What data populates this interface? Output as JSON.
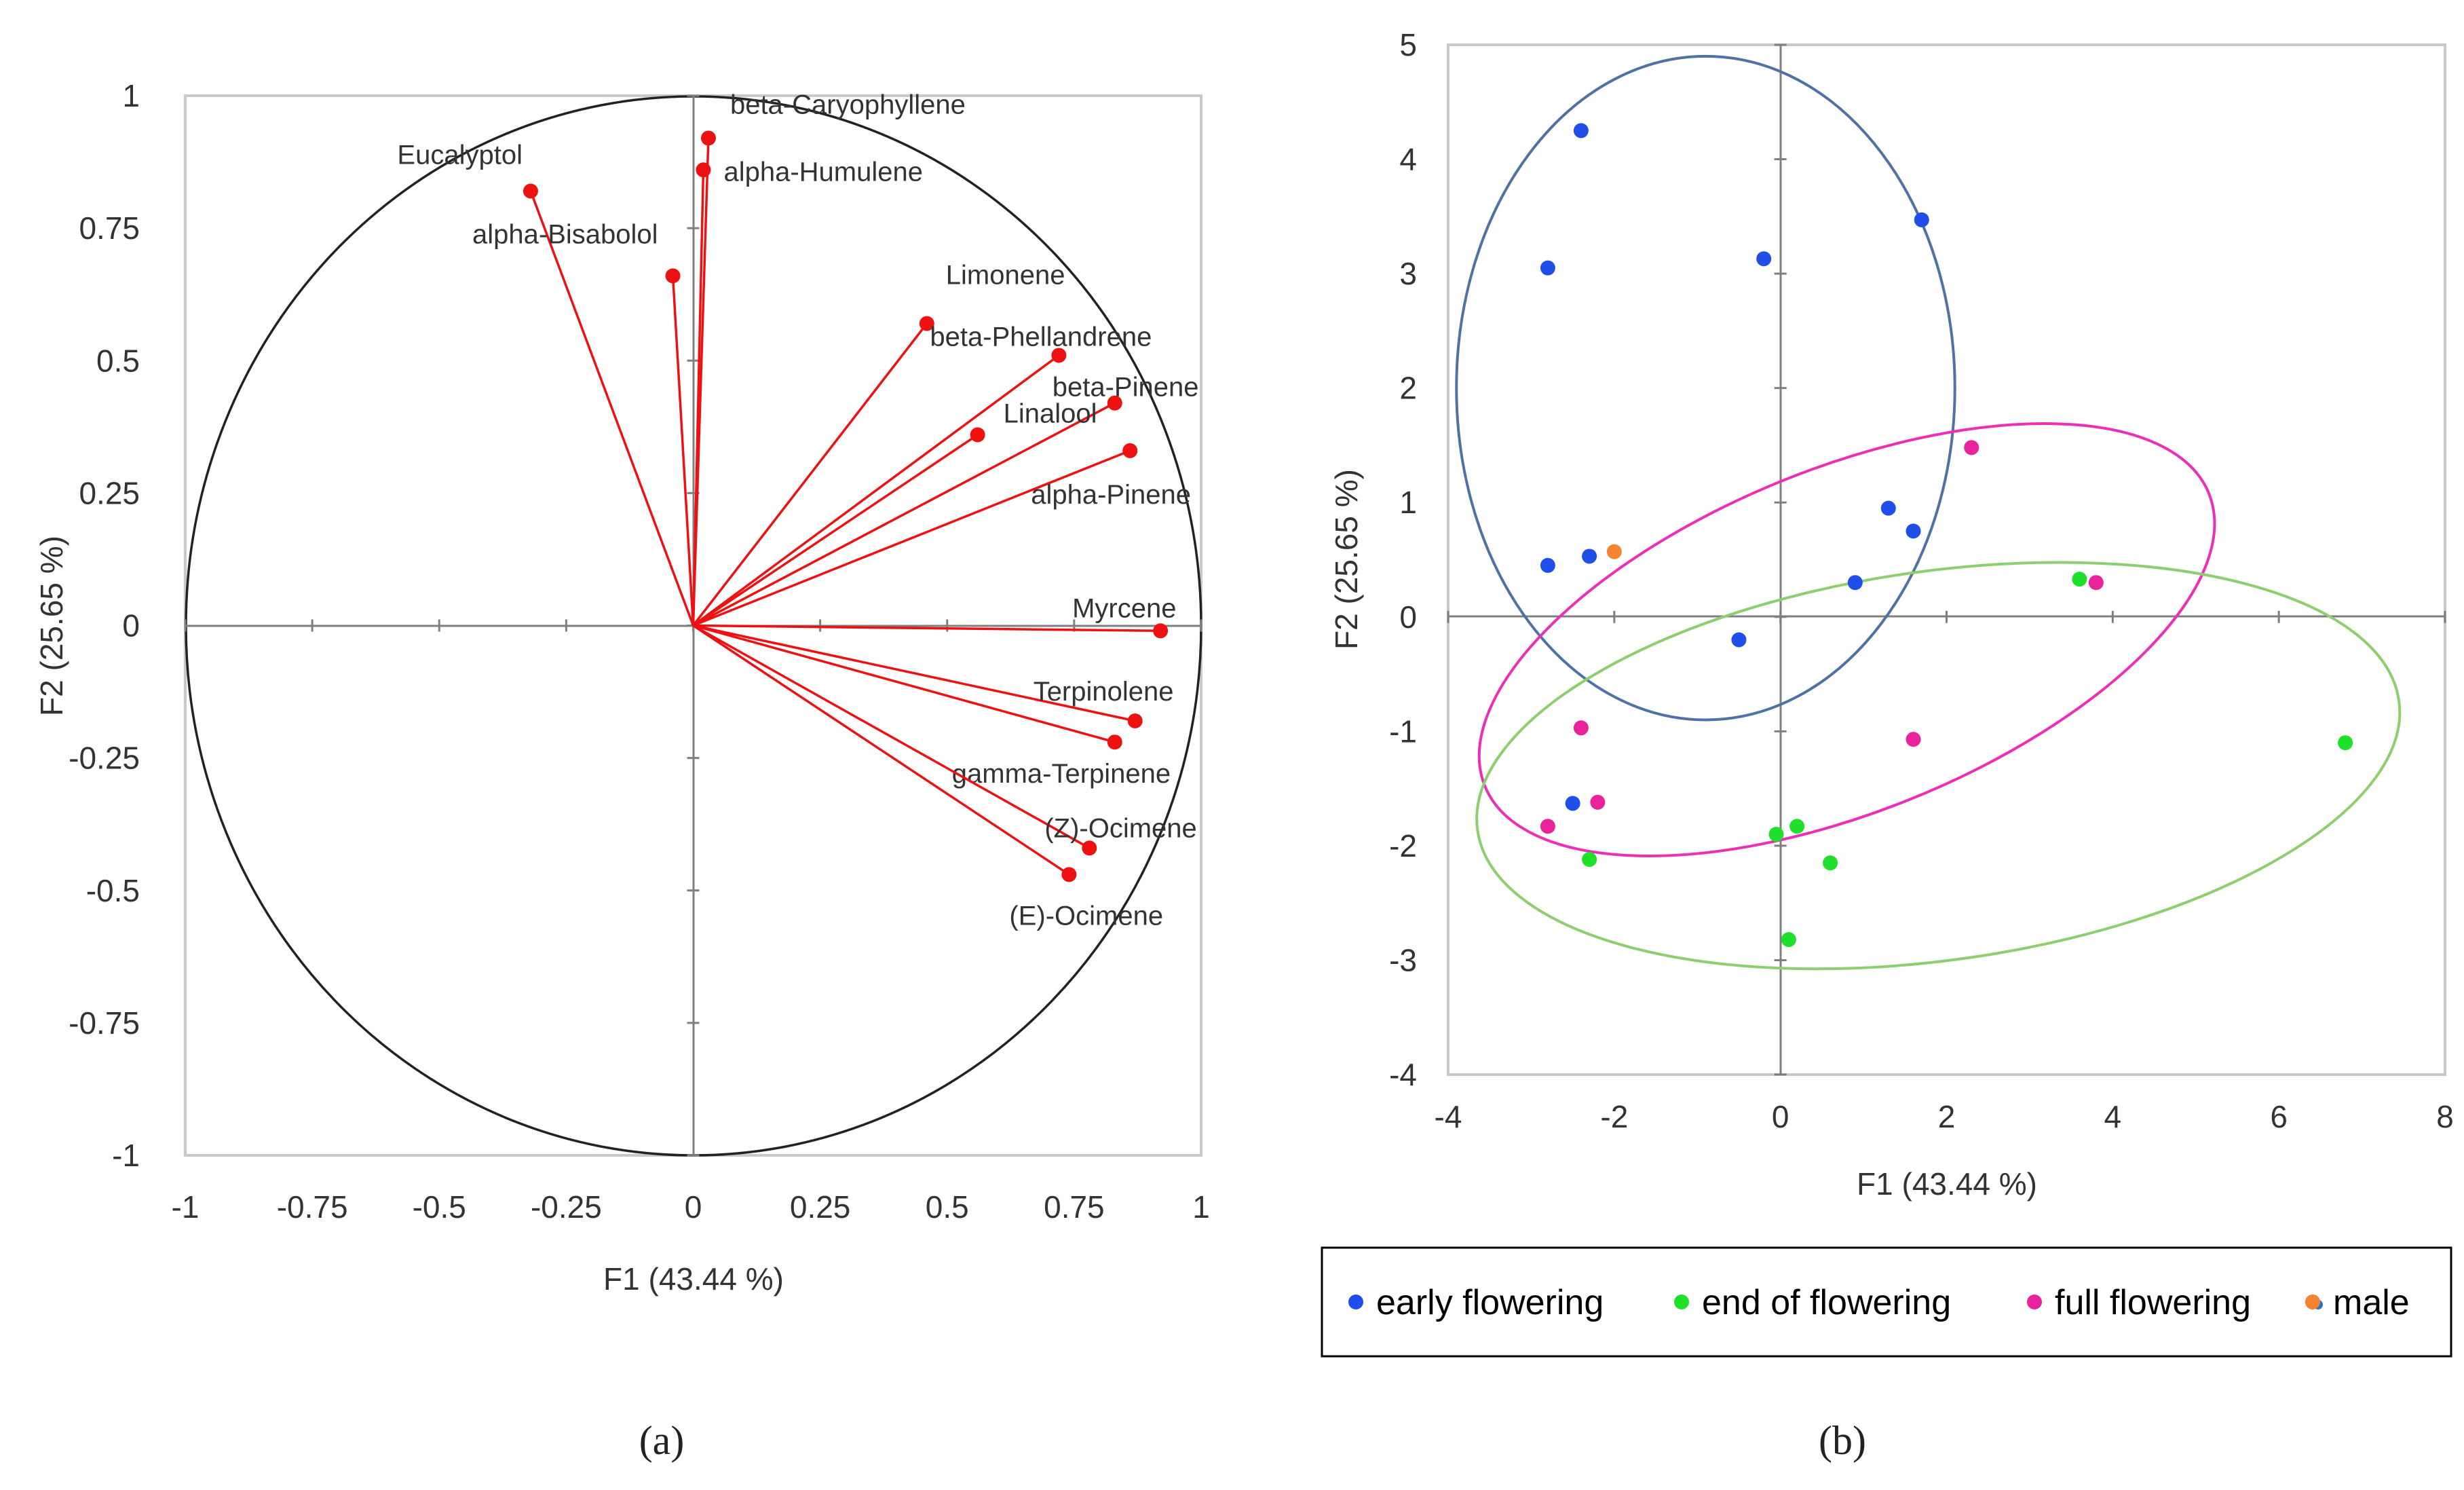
{
  "colors": {
    "vector": "#ee1111",
    "axis": "#7f7f7f",
    "grid_box": "#c8c8c8",
    "circle": "#222222",
    "text": "#333333"
  },
  "chart_data": [
    {
      "type": "scatter",
      "subtype": "pca-correlation-circle",
      "panel_label": "(a)",
      "xlabel": "F1 (43.44 %)",
      "ylabel": "F2 (25.65 %)",
      "xlim": [
        -1,
        1
      ],
      "ylim": [
        -1,
        1
      ],
      "x_ticks": [
        -1,
        -0.75,
        -0.5,
        -0.25,
        0,
        0.25,
        0.5,
        0.75,
        1
      ],
      "y_ticks": [
        -1,
        -0.75,
        -0.5,
        -0.25,
        0,
        0.25,
        0.5,
        0.75,
        1
      ],
      "x_tick_labels": [
        "-1",
        "-0.75",
        "-0.5",
        "-0.25",
        "0",
        "0.25",
        "0.5",
        "0.75",
        "1"
      ],
      "y_tick_labels": [
        "-1",
        "-0.75",
        "-0.5",
        "-0.25",
        "0",
        "0.25",
        "0.5",
        "0.75",
        "1"
      ],
      "variables": [
        {
          "name": "beta-Caryophyllene",
          "x": 0.03,
          "y": 0.92
        },
        {
          "name": "alpha-Humulene",
          "x": 0.02,
          "y": 0.86
        },
        {
          "name": "Eucalyptol",
          "x": -0.32,
          "y": 0.82
        },
        {
          "name": "alpha-Bisabolol",
          "x": -0.04,
          "y": 0.66
        },
        {
          "name": "Limonene",
          "x": 0.46,
          "y": 0.57
        },
        {
          "name": "beta-Phellandrene",
          "x": 0.72,
          "y": 0.51
        },
        {
          "name": "beta-Pinene",
          "x": 0.83,
          "y": 0.42
        },
        {
          "name": "Linalool",
          "x": 0.56,
          "y": 0.36
        },
        {
          "name": "alpha-Pinene",
          "x": 0.86,
          "y": 0.33
        },
        {
          "name": "Myrcene",
          "x": 0.92,
          "y": -0.01
        },
        {
          "name": "Terpinolene",
          "x": 0.87,
          "y": -0.18
        },
        {
          "name": "gamma-Terpinene",
          "x": 0.83,
          "y": -0.22
        },
        {
          "name": "(Z)-Ocimene",
          "x": 0.78,
          "y": -0.42
        },
        {
          "name": "(E)-Ocimene",
          "x": 0.74,
          "y": -0.47
        }
      ]
    },
    {
      "type": "scatter",
      "subtype": "pca-score-plot",
      "panel_label": "(b)",
      "xlabel": "F1 (43.44 %)",
      "ylabel": "F2 (25.65 %)",
      "xlim": [
        -4,
        8
      ],
      "ylim": [
        -4,
        5
      ],
      "x_ticks": [
        -4,
        -2,
        0,
        2,
        4,
        6,
        8
      ],
      "y_ticks": [
        -4,
        -3,
        -2,
        -1,
        0,
        1,
        2,
        3,
        4,
        5
      ],
      "x_tick_labels": [
        "-4",
        "-2",
        "0",
        "2",
        "4",
        "6",
        "8"
      ],
      "y_tick_labels": [
        "-4",
        "-3",
        "-2",
        "-1",
        "0",
        "1",
        "2",
        "3",
        "4",
        "5"
      ],
      "legend_position": "bottom",
      "series": [
        {
          "name": "early flowering",
          "color": "#1f4ee8",
          "points": [
            [
              -2.4,
              4.25
            ],
            [
              -2.8,
              3.05
            ],
            [
              -0.2,
              3.13
            ],
            [
              1.7,
              3.47
            ],
            [
              1.3,
              0.95
            ],
            [
              1.6,
              0.75
            ],
            [
              0.9,
              0.3
            ],
            [
              -2.8,
              0.45
            ],
            [
              -2.3,
              0.53
            ],
            [
              -0.5,
              -0.2
            ],
            [
              -2.5,
              -1.63
            ]
          ]
        },
        {
          "name": "end of flowering",
          "color": "#1fe02b",
          "points": [
            [
              3.6,
              0.33
            ],
            [
              6.8,
              -1.1
            ],
            [
              0.2,
              -1.83
            ],
            [
              -0.05,
              -1.9
            ],
            [
              -2.3,
              -2.12
            ],
            [
              0.6,
              -2.15
            ],
            [
              0.1,
              -2.82
            ]
          ]
        },
        {
          "name": "full flowering",
          "color": "#e8239b",
          "points": [
            [
              2.3,
              1.48
            ],
            [
              3.8,
              0.3
            ],
            [
              1.6,
              -1.07
            ],
            [
              -2.4,
              -0.97
            ],
            [
              -2.2,
              -1.62
            ],
            [
              -2.8,
              -1.83
            ]
          ]
        },
        {
          "name": "male",
          "color": "#f58431",
          "points": [
            [
              -2.0,
              0.57
            ]
          ]
        }
      ],
      "ellipses": [
        {
          "group": "early flowering",
          "color": "#4f72a6",
          "cx": -0.9,
          "cy": 2.0,
          "rx": 3.0,
          "ry": 2.9,
          "rotate_deg": 0
        },
        {
          "group": "full flowering",
          "color": "#ec2fb5",
          "cx": 0.8,
          "cy": -0.2,
          "rx": 4.7,
          "ry": 1.5,
          "rotate_deg": 22
        },
        {
          "group": "end of flowering",
          "color": "#8ccf6e",
          "cx": 1.9,
          "cy": -1.3,
          "rx": 5.6,
          "ry": 1.7,
          "rotate_deg": 8
        }
      ]
    }
  ]
}
